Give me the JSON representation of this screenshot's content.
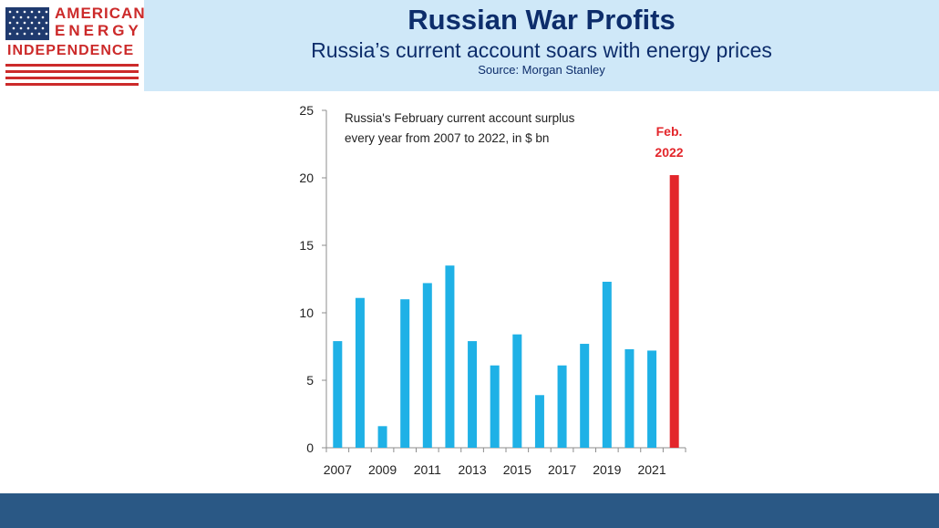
{
  "header": {
    "title": "Russian War Profits",
    "subtitle": "Russia’s current account soars with energy prices",
    "source": "Source: Morgan Stanley"
  },
  "logo": {
    "line1": "AMERICAN",
    "line2": "ENERGY",
    "line3": "INDEPENDENCE"
  },
  "colors": {
    "bar": "#1fb1e6",
    "highlight": "#e3262b",
    "title": "#0d2d6b",
    "header_bg": "#cfe8f8",
    "footer_bg": "#2a5885"
  },
  "chart_data": {
    "type": "bar",
    "annotation_line1": "Russia's February current account surplus",
    "annotation_line2": "every year from 2007 to 2022,  in $ bn",
    "highlight_label_line1": "Feb.",
    "highlight_label_line2": "2022",
    "categories": [
      "2007",
      "2008",
      "2009",
      "2010",
      "2011",
      "2012",
      "2013",
      "2014",
      "2015",
      "2016",
      "2017",
      "2018",
      "2019",
      "2020",
      "2021",
      "2022"
    ],
    "values": [
      7.9,
      11.1,
      1.6,
      11.0,
      12.2,
      13.5,
      7.9,
      6.1,
      8.4,
      3.9,
      6.1,
      7.7,
      12.3,
      7.3,
      7.2,
      20.2
    ],
    "highlight_index": 15,
    "x_tick_labels": [
      "2007",
      "2009",
      "2011",
      "2013",
      "2015",
      "2017",
      "2019",
      "2021"
    ],
    "y_ticks": [
      0,
      5,
      10,
      15,
      20,
      25
    ],
    "ylim": [
      0,
      25
    ]
  }
}
